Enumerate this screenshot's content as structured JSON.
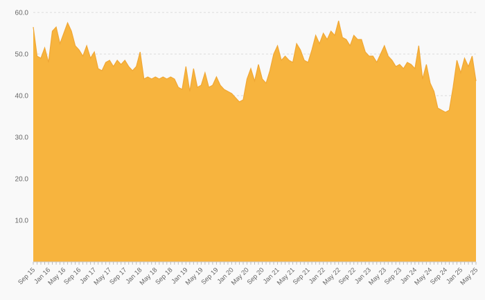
{
  "chart_data": {
    "type": "area",
    "title": "",
    "xlabel": "",
    "ylabel": "",
    "ylim": [
      0,
      60
    ],
    "y_ticks": [
      10,
      20,
      30,
      40,
      50,
      60
    ],
    "y_tick_labels": [
      "10.0",
      "20.0",
      "30.0",
      "40.0",
      "50.0",
      "60.0"
    ],
    "x_tick_every": 4,
    "x_tick_labels": [
      "Sep 15",
      "Jan 16",
      "May 16",
      "Sep 16",
      "Jan 17",
      "May 17",
      "Sep 17",
      "Jan 18",
      "May 18",
      "Sep 18",
      "Jan 19",
      "May 19",
      "Sep 19",
      "Jan 20",
      "May 20",
      "Sep 20",
      "Jan 21",
      "May 21",
      "Sep 21",
      "Jan 22",
      "May 22",
      "Sep 22",
      "Jan 23",
      "May 23",
      "Sep 23",
      "Jan 24",
      "May 24",
      "Sep 24",
      "Jan 25",
      "May 25"
    ],
    "values": [
      56.5,
      49.5,
      49.0,
      51.5,
      48.0,
      55.5,
      56.5,
      52.5,
      55.0,
      57.5,
      55.5,
      52.0,
      51.0,
      49.5,
      52.0,
      49.0,
      50.5,
      46.5,
      46.0,
      48.0,
      48.5,
      47.0,
      48.5,
      47.5,
      48.5,
      47.0,
      46.0,
      47.0,
      50.5,
      44.0,
      44.5,
      44.0,
      44.5,
      44.0,
      44.5,
      44.0,
      44.5,
      44.0,
      42.0,
      41.5,
      47.0,
      41.0,
      46.5,
      42.0,
      42.5,
      45.5,
      42.0,
      42.5,
      44.5,
      42.5,
      41.5,
      41.0,
      40.5,
      39.5,
      38.5,
      39.0,
      44.0,
      46.5,
      43.5,
      47.5,
      44.0,
      43.0,
      46.0,
      50.0,
      52.0,
      48.5,
      49.5,
      48.5,
      48.0,
      52.5,
      51.0,
      48.5,
      48.0,
      51.0,
      54.5,
      52.5,
      55.0,
      53.5,
      55.5,
      54.5,
      58.0,
      54.0,
      53.5,
      52.0,
      54.5,
      53.5,
      53.5,
      50.5,
      49.5,
      49.5,
      48.0,
      50.0,
      52.0,
      49.5,
      48.5,
      47.0,
      47.5,
      46.5,
      48.0,
      47.5,
      46.5,
      52.0,
      44.0,
      47.5,
      43.0,
      41.0,
      37.0,
      36.5,
      36.0,
      36.5,
      42.0,
      48.5,
      45.5,
      49.0,
      47.0,
      49.5,
      43.5
    ],
    "colors": {
      "area_fill": "#f7b43e",
      "area_stroke": "#f0a735",
      "grid_line": "#dcdcdc",
      "axis_line": "#cccccc",
      "tick_mark": "#bbbbbb",
      "label_text": "#666666",
      "background": "#f9f9f9"
    },
    "grid": "horizontal-dashed",
    "legend": "none"
  }
}
